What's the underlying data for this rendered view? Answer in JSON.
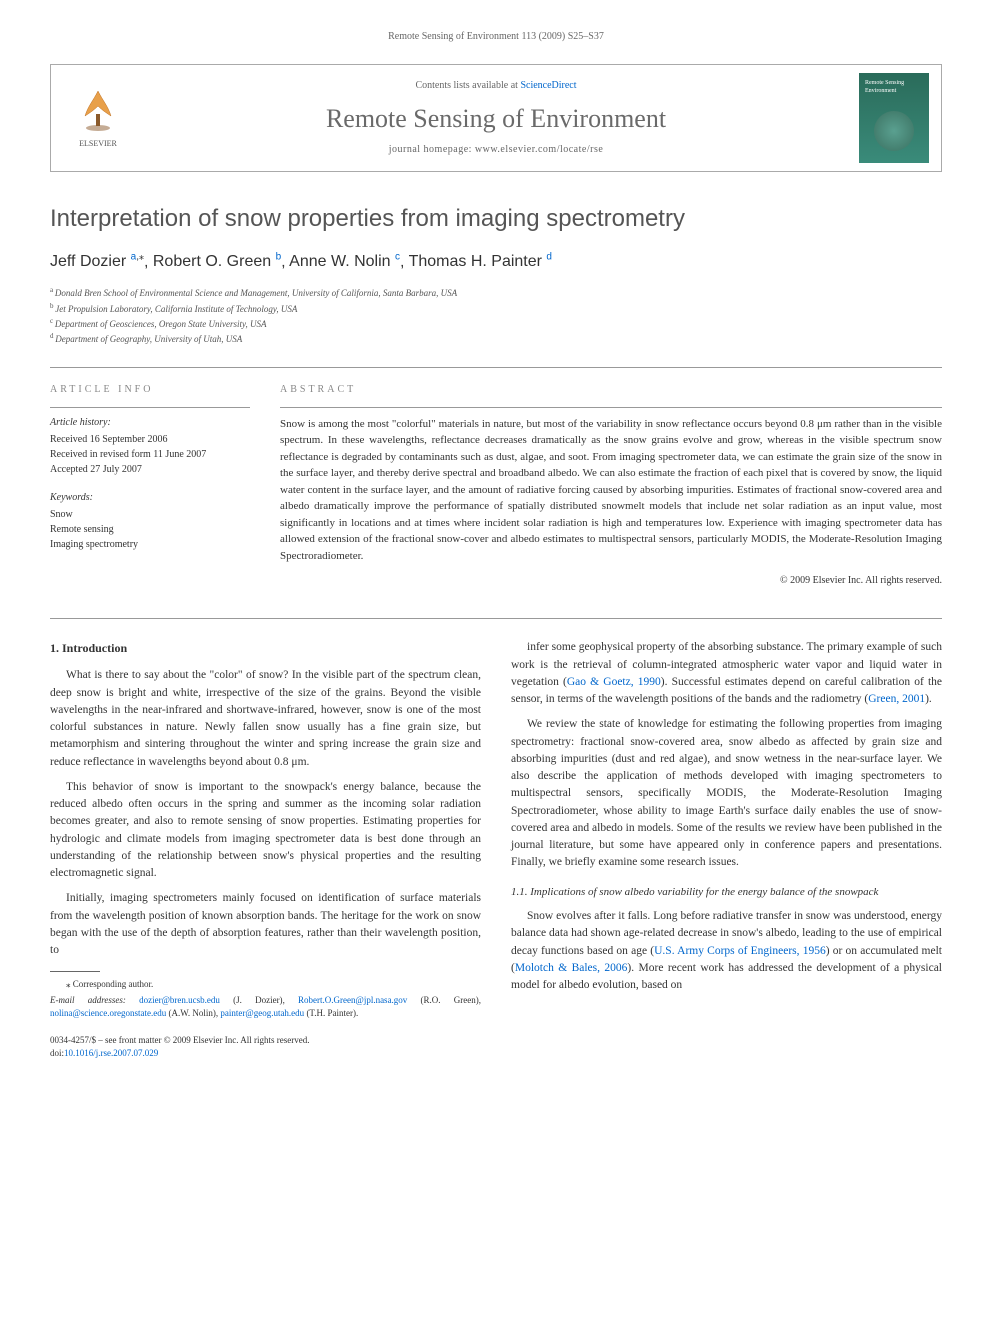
{
  "running_header": "Remote Sensing of Environment 113 (2009) S25–S37",
  "header": {
    "contents_prefix": "Contents lists available at ",
    "contents_link": "ScienceDirect",
    "journal_name": "Remote Sensing of Environment",
    "homepage_label": "journal homepage: www.elsevier.com/locate/rse",
    "elsevier_label": "ELSEVIER",
    "cover_text": "Remote Sensing Environment"
  },
  "title": "Interpretation of snow properties from imaging spectrometry",
  "authors": [
    {
      "name": "Jeff Dozier",
      "affil": "a",
      "corresponding": true
    },
    {
      "name": "Robert O. Green",
      "affil": "b",
      "corresponding": false
    },
    {
      "name": "Anne W. Nolin",
      "affil": "c",
      "corresponding": false
    },
    {
      "name": "Thomas H. Painter",
      "affil": "d",
      "corresponding": false
    }
  ],
  "affiliations": [
    {
      "key": "a",
      "text": "Donald Bren School of Environmental Science and Management, University of California, Santa Barbara, USA"
    },
    {
      "key": "b",
      "text": "Jet Propulsion Laboratory, California Institute of Technology, USA"
    },
    {
      "key": "c",
      "text": "Department of Geosciences, Oregon State University, USA"
    },
    {
      "key": "d",
      "text": "Department of Geography, University of Utah, USA"
    }
  ],
  "article_info": {
    "heading": "ARTICLE INFO",
    "history_head": "Article history:",
    "received": "Received 16 September 2006",
    "revised": "Received in revised form 11 June 2007",
    "accepted": "Accepted 27 July 2007",
    "keywords_head": "Keywords:",
    "keywords": [
      "Snow",
      "Remote sensing",
      "Imaging spectrometry"
    ]
  },
  "abstract": {
    "heading": "ABSTRACT",
    "text": "Snow is among the most \"colorful\" materials in nature, but most of the variability in snow reflectance occurs beyond 0.8 μm rather than in the visible spectrum. In these wavelengths, reflectance decreases dramatically as the snow grains evolve and grow, whereas in the visible spectrum snow reflectance is degraded by contaminants such as dust, algae, and soot. From imaging spectrometer data, we can estimate the grain size of the snow in the surface layer, and thereby derive spectral and broadband albedo. We can also estimate the fraction of each pixel that is covered by snow, the liquid water content in the surface layer, and the amount of radiative forcing caused by absorbing impurities. Estimates of fractional snow-covered area and albedo dramatically improve the performance of spatially distributed snowmelt models that include net solar radiation as an input value, most significantly in locations and at times where incident solar radiation is high and temperatures low. Experience with imaging spectrometer data has allowed extension of the fractional snow-cover and albedo estimates to multispectral sensors, particularly MODIS, the Moderate-Resolution Imaging Spectroradiometer.",
    "copyright": "© 2009 Elsevier Inc. All rights reserved."
  },
  "body": {
    "section1_heading": "1. Introduction",
    "p1": "What is there to say about the \"color\" of snow? In the visible part of the spectrum clean, deep snow is bright and white, irrespective of the size of the grains. Beyond the visible wavelengths in the near-infrared and shortwave-infrared, however, snow is one of the most colorful substances in nature. Newly fallen snow usually has a fine grain size, but metamorphism and sintering throughout the winter and spring increase the grain size and reduce reflectance in wavelengths beyond about 0.8 μm.",
    "p2": "This behavior of snow is important to the snowpack's energy balance, because the reduced albedo often occurs in the spring and summer as the incoming solar radiation becomes greater, and also to remote sensing of snow properties. Estimating properties for hydrologic and climate models from imaging spectrometer data is best done through an understanding of the relationship between snow's physical properties and the resulting electromagnetic signal.",
    "p3": "Initially, imaging spectrometers mainly focused on identification of surface materials from the wavelength position of known absorption bands. The heritage for the work on snow began with the use of the depth of absorption features, rather than their wavelength position, to",
    "p4_prefix": "infer some geophysical property of the absorbing substance. The primary example of such work is the retrieval of column-integrated atmospheric water vapor and liquid water in vegetation (",
    "p4_link1": "Gao & Goetz, 1990",
    "p4_mid": "). Successful estimates depend on careful calibration of the sensor, in terms of the wavelength positions of the bands and the radiometry (",
    "p4_link2": "Green, 2001",
    "p4_suffix": ").",
    "p5": "We review the state of knowledge for estimating the following properties from imaging spectrometry: fractional snow-covered area, snow albedo as affected by grain size and absorbing impurities (dust and red algae), and snow wetness in the near-surface layer. We also describe the application of methods developed with imaging spectrometers to multispectral sensors, specifically MODIS, the Moderate-Resolution Imaging Spectroradiometer, whose ability to image Earth's surface daily enables the use of snow-covered area and albedo in models. Some of the results we review have been published in the journal literature, but some have appeared only in conference papers and presentations. Finally, we briefly examine some research issues.",
    "section11_heading": "1.1. Implications of snow albedo variability for the energy balance of the snowpack",
    "p6_prefix": "Snow evolves after it falls. Long before radiative transfer in snow was understood, energy balance data had shown age-related decrease in snow's albedo, leading to the use of empirical decay functions based on age (",
    "p6_link1": "U.S. Army Corps of Engineers, 1956",
    "p6_mid": ") or on accumulated melt (",
    "p6_link2": "Molotch & Bales, 2006",
    "p6_suffix": "). More recent work has addressed the development of a physical model for albedo evolution, based on"
  },
  "footnotes": {
    "corr_label": "⁎ Corresponding author.",
    "email_label": "E-mail addresses:",
    "emails": [
      {
        "addr": "dozier@bren.ucsb.edu",
        "who": "(J. Dozier)"
      },
      {
        "addr": "Robert.O.Green@jpl.nasa.gov",
        "who": "(R.O. Green)"
      },
      {
        "addr": "nolina@science.oregonstate.edu",
        "who": "(A.W. Nolin)"
      },
      {
        "addr": "painter@geog.utah.edu",
        "who": "(T.H. Painter)"
      }
    ]
  },
  "bottom": {
    "issn_line": "0034-4257/$ – see front matter © 2009 Elsevier Inc. All rights reserved.",
    "doi_prefix": "doi:",
    "doi": "10.1016/j.rse.2007.07.029"
  },
  "colors": {
    "link": "#0066cc",
    "text": "#333333",
    "muted": "#666666",
    "heading_gray": "#555555",
    "border": "#999999"
  }
}
